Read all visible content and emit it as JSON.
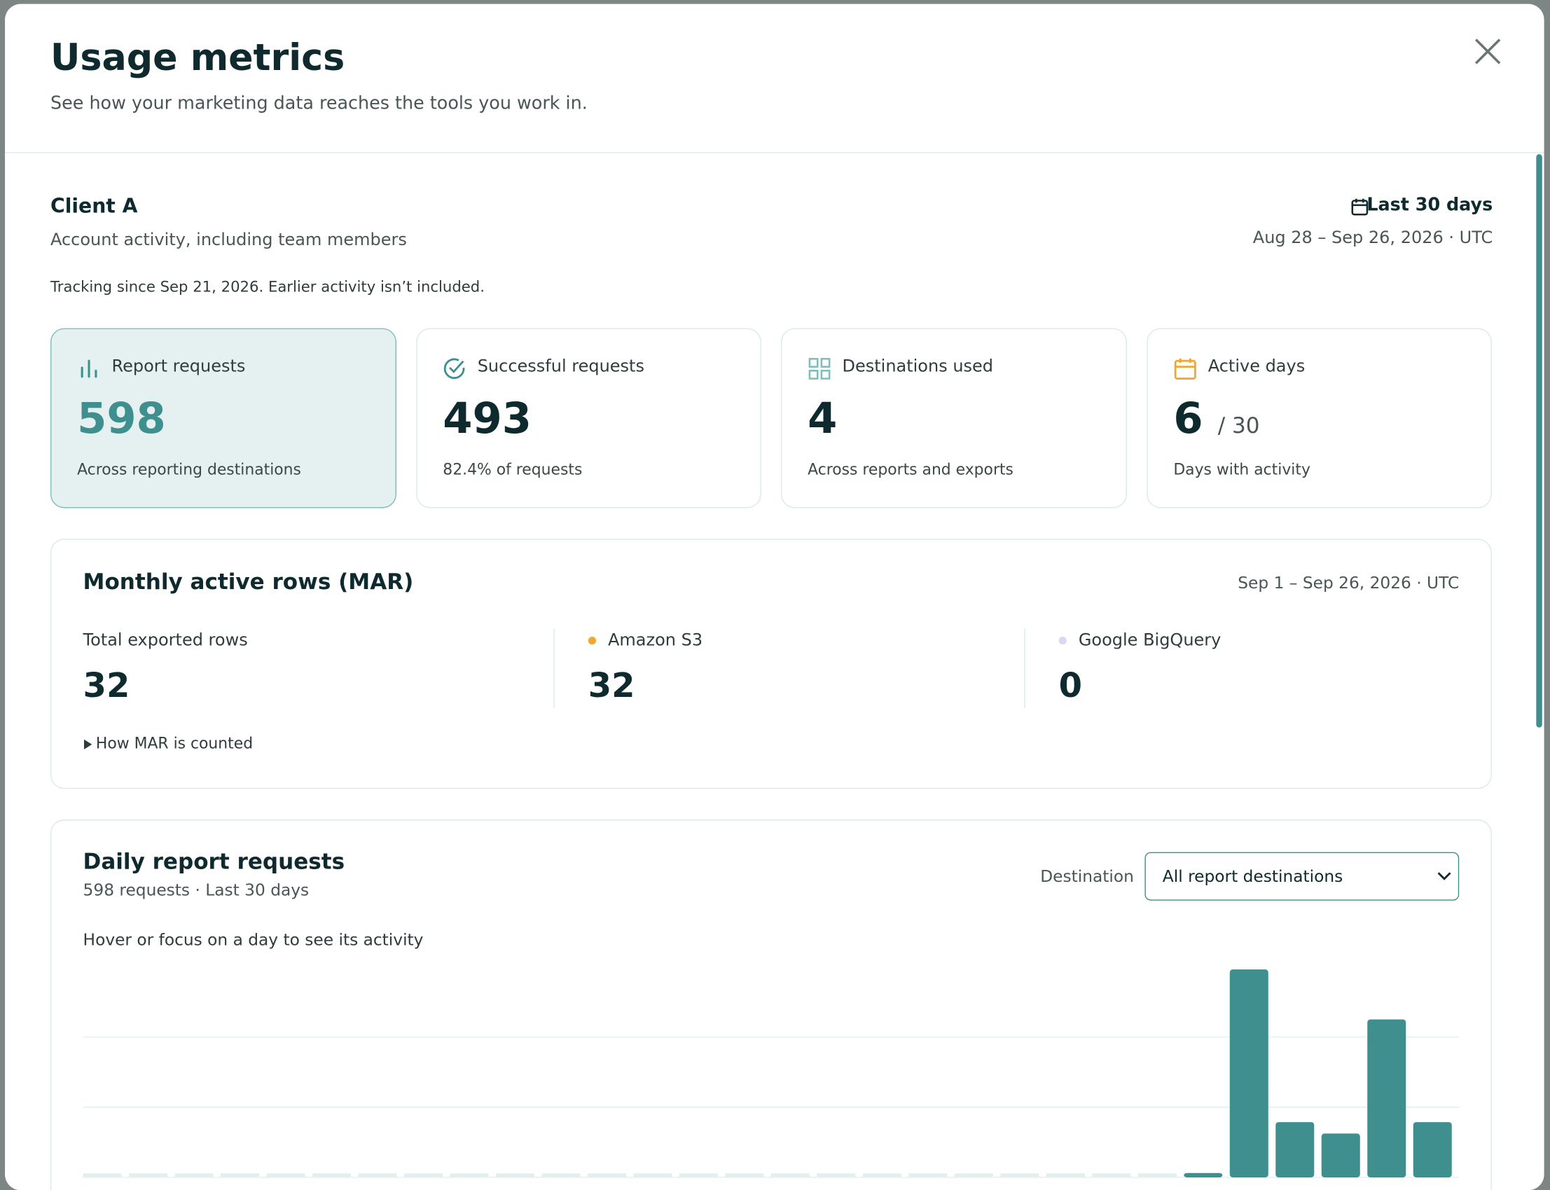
{
  "header": {
    "title": "Usage metrics",
    "subtitle": "See how your marketing data reaches the tools you work in."
  },
  "client": {
    "name": "Client A",
    "description": "Account activity, including team members",
    "range_label": "Last 30 days",
    "range": "Aug 28 – Sep 26, 2026 · UTC",
    "note": "Tracking since Sep 21, 2026. Earlier activity isn’t included."
  },
  "cards": [
    {
      "label": "Report requests",
      "value": 598,
      "caption": "Across reporting destinations"
    },
    {
      "label": "Successful requests",
      "value": 493,
      "caption": "82.4% of requests"
    },
    {
      "label": "Destinations used",
      "value": 4,
      "caption": "Across reports and exports"
    },
    {
      "label": "Active days",
      "value": 6,
      "suffix": "/ 30",
      "caption": "Days with activity"
    }
  ],
  "mar": {
    "title": "Monthly active rows (MAR)",
    "range": "Sep 1 – Sep 26, 2026 · UTC",
    "stats": [
      {
        "label": "Total exported rows",
        "value": 32
      },
      {
        "label": "Amazon S3",
        "value": 32,
        "color": "#f0a830"
      },
      {
        "label": "Google BigQuery",
        "value": 0,
        "color": "#dcd6f6"
      }
    ],
    "disclosure": "How MAR is counted"
  },
  "daily": {
    "title": "Daily report requests",
    "subtitle": "598 requests · Last 30 days",
    "filter_label": "Destination",
    "filter_value": "All report destinations",
    "hint": "Hover or focus on a day to see its activity"
  },
  "chart_data": {
    "type": "bar",
    "values": [
      0,
      0,
      0,
      0,
      0,
      0,
      0,
      0,
      0,
      0,
      0,
      0,
      0,
      0,
      0,
      0,
      0,
      0,
      0,
      0,
      0,
      0,
      0,
      0,
      5,
      237,
      63,
      50,
      180,
      63
    ],
    "color": "#3f8f8f",
    "empty_color": "#e2efee",
    "ylim": [
      0,
      240
    ],
    "yticks": [
      0,
      80,
      160
    ],
    "grid": true
  }
}
